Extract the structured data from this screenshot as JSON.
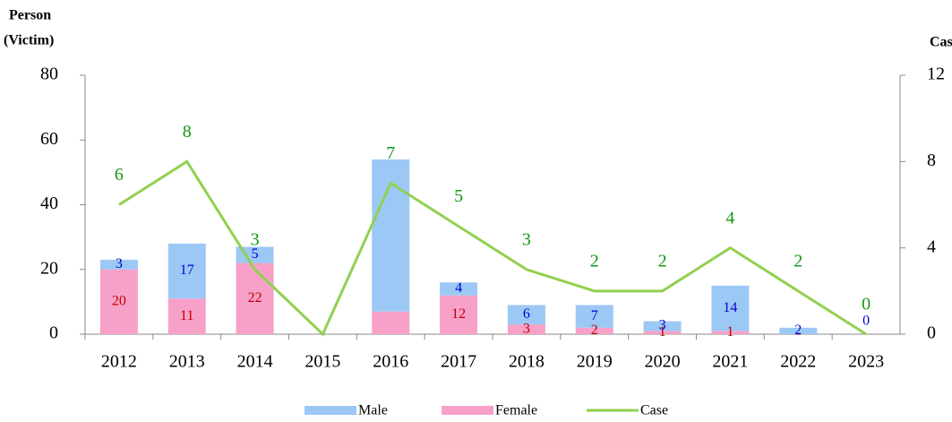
{
  "chart_data": {
    "type": "bar-line",
    "ylabel_lines": [
      "Person",
      "(Victim)"
    ],
    "y2label": "Case",
    "categories": [
      "2012",
      "2013",
      "2014",
      "2015",
      "2016",
      "2017",
      "2018",
      "2019",
      "2020",
      "2021",
      "2022",
      "2023"
    ],
    "series": [
      {
        "name": "Male",
        "color": "#9cc8f5",
        "label_color": "#0000cc",
        "values": [
          3,
          17,
          5,
          0,
          47,
          4,
          6,
          7,
          3,
          14,
          2,
          0
        ],
        "value_labels": [
          "3",
          "17",
          "5",
          null,
          null,
          "4",
          "6",
          "7",
          "3",
          "14",
          "2",
          "0"
        ]
      },
      {
        "name": "Female",
        "color": "#f7a1c8",
        "label_color": "#c00000",
        "values": [
          20,
          11,
          22,
          0,
          7,
          12,
          3,
          2,
          1,
          1,
          0,
          0
        ],
        "value_labels": [
          "20",
          "11",
          "22",
          "-",
          null,
          "12",
          "3",
          "2",
          "1",
          "1",
          "-",
          null
        ]
      },
      {
        "name": "Case",
        "color": "#92d050",
        "label_color": "#119911",
        "axis": "y2",
        "values": [
          6,
          8,
          3,
          0,
          7,
          5,
          3,
          2,
          2,
          4,
          2,
          0
        ],
        "value_labels": [
          "6",
          "8",
          "3",
          null,
          "7",
          "5",
          "3",
          "2",
          "2",
          "4",
          "2",
          "0"
        ]
      }
    ],
    "ylim": [
      0,
      80
    ],
    "yticks": [
      0,
      20,
      40,
      60,
      80
    ],
    "y2lim": [
      0,
      12
    ],
    "y2ticks": [
      0,
      4,
      8,
      12
    ],
    "legend": "bottom"
  }
}
